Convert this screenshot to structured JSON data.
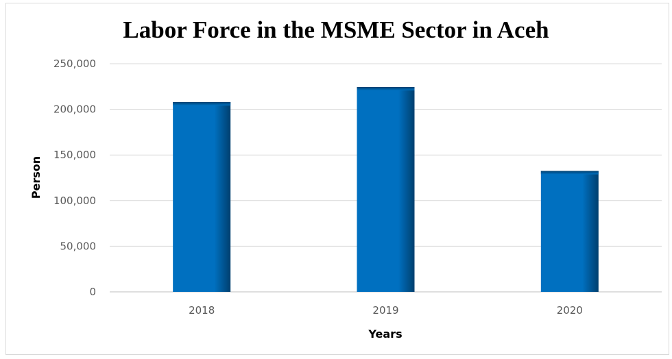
{
  "chart_data": {
    "type": "bar",
    "title": "Labor Force in the MSME Sector in Aceh",
    "xlabel": "Years",
    "ylabel": "Person",
    "categories": [
      "2018",
      "2019",
      "2020"
    ],
    "values": [
      208000,
      224500,
      132500
    ],
    "ylim": [
      0,
      250000
    ],
    "yticks": [
      "0",
      "50,000",
      "100,000",
      "150,000",
      "200,000",
      "250,000"
    ],
    "ytick_values": [
      0,
      50000,
      100000,
      150000,
      200000,
      250000
    ],
    "grid": true,
    "legend": "none",
    "colors": {
      "bar": "#0070c0",
      "bar_dark": "#003f6e",
      "grid": "#d9d9d9",
      "axis": "#bfbfbf"
    }
  }
}
